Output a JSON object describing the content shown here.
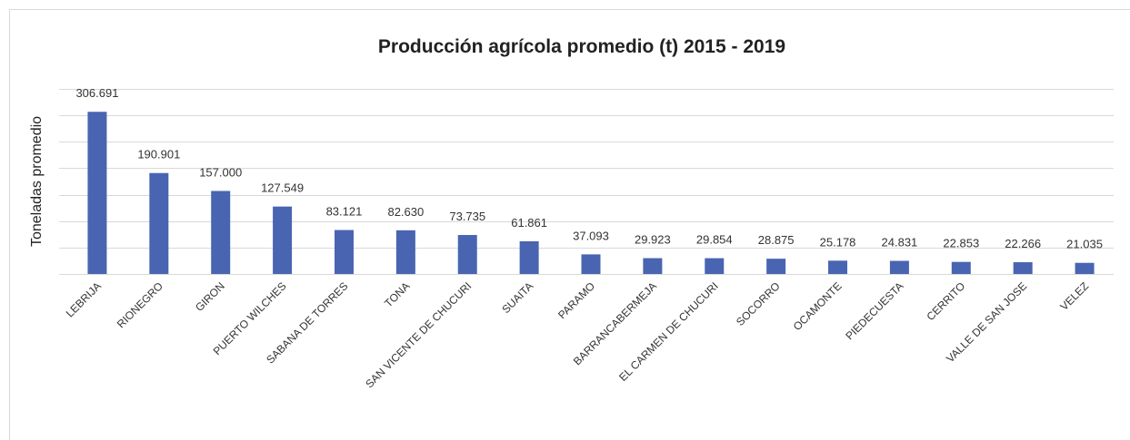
{
  "chart_data": {
    "type": "bar",
    "title": "Producción agrícola promedio (t) 2015 - 2019",
    "y_label": "Toneladas  promedio",
    "categories": [
      "LEBRIJA",
      "RIONEGRO",
      "GIRON",
      "PUERTO WILCHES",
      "SABANA DE TORRES",
      "TONA",
      "SAN VICENTE DE CHUCURI",
      "SUAITA",
      "PARAMO",
      "BARRANCABERMEJA",
      "EL CARMEN DE CHUCURI",
      "SOCORRO",
      "OCAMONTE",
      "PIEDECUESTA",
      "CERRITO",
      "VALLE DE SAN JOSE",
      "VELEZ"
    ],
    "values": [
      306691,
      190901,
      157000,
      127549,
      83121,
      82630,
      73735,
      61861,
      37093,
      29923,
      29854,
      28875,
      25178,
      24831,
      22853,
      22266,
      21035
    ],
    "value_labels": [
      "306.691",
      "190.901",
      "157.000",
      "127.549",
      "83.121",
      "82.630",
      "73.735",
      "61.861",
      "37.093",
      "29.923",
      "29.854",
      "28.875",
      "25.178",
      "24.831",
      "22.853",
      "22.266",
      "21.035"
    ],
    "color": "#4965b1",
    "ylim": [
      0,
      350000
    ],
    "yticks": [
      0,
      50000,
      100000,
      150000,
      200000,
      250000,
      300000,
      350000
    ],
    "grid": true
  }
}
